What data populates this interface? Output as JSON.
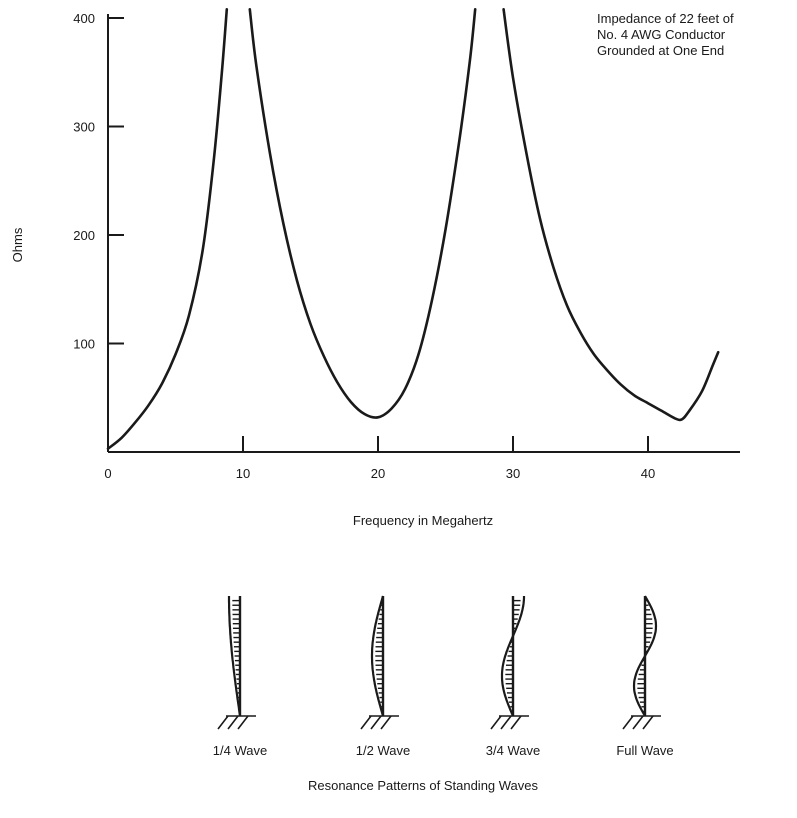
{
  "chart_data": {
    "type": "line",
    "title": "Impedance of 22 feet of\nNo. 4 AWG Conductor\nGrounded at One End",
    "xlabel": "Frequency in Megahertz",
    "ylabel": "Ohms",
    "xlim": [
      0,
      47
    ],
    "ylim": [
      0,
      410
    ],
    "x_ticks": [
      0,
      10,
      20,
      30,
      40
    ],
    "y_ticks": [
      100,
      200,
      300,
      400
    ],
    "grid": false,
    "series": [
      {
        "segments": [
          {
            "points": [
              [
                0,
                3
              ],
              [
                1,
                13
              ],
              [
                2,
                27
              ],
              [
                3,
                43
              ],
              [
                4,
                63
              ],
              [
                5,
                90
              ],
              [
                6,
                126
              ],
              [
                7,
                185
              ],
              [
                7.8,
                265
              ],
              [
                8.4,
                345
              ],
              [
                8.8,
                408
              ]
            ]
          },
          {
            "points": [
              [
                10.5,
                408
              ],
              [
                11,
                355
              ],
              [
                12,
                275
              ],
              [
                13,
                210
              ],
              [
                14,
                158
              ],
              [
                15,
                118
              ],
              [
                16,
                88
              ],
              [
                17,
                64
              ],
              [
                18,
                46
              ],
              [
                19,
                35
              ],
              [
                20,
                32
              ],
              [
                21,
                40
              ],
              [
                22,
                58
              ],
              [
                23,
                90
              ],
              [
                24,
                140
              ],
              [
                25,
                205
              ],
              [
                26,
                285
              ],
              [
                26.8,
                360
              ],
              [
                27.2,
                408
              ]
            ]
          },
          {
            "points": [
              [
                29.3,
                408
              ],
              [
                30,
                345
              ],
              [
                31,
                275
              ],
              [
                32,
                215
              ],
              [
                33,
                170
              ],
              [
                34,
                135
              ],
              [
                35,
                110
              ],
              [
                36,
                90
              ],
              [
                37,
                75
              ],
              [
                38,
                62
              ],
              [
                39,
                52
              ],
              [
                40,
                45
              ],
              [
                41,
                38
              ],
              [
                42,
                31
              ],
              [
                42.5,
                30
              ],
              [
                43,
                37
              ],
              [
                44,
                56
              ],
              [
                44.8,
                80
              ],
              [
                45.2,
                92
              ]
            ]
          }
        ]
      }
    ]
  },
  "standing_waves": {
    "caption": "Resonance Patterns of Standing Waves",
    "patterns": [
      {
        "label": "1/4 Wave",
        "type": "quarter"
      },
      {
        "label": "1/2 Wave",
        "type": "half"
      },
      {
        "label": "3/4 Wave",
        "type": "three-quarter"
      },
      {
        "label": "Full Wave",
        "type": "full"
      }
    ]
  }
}
